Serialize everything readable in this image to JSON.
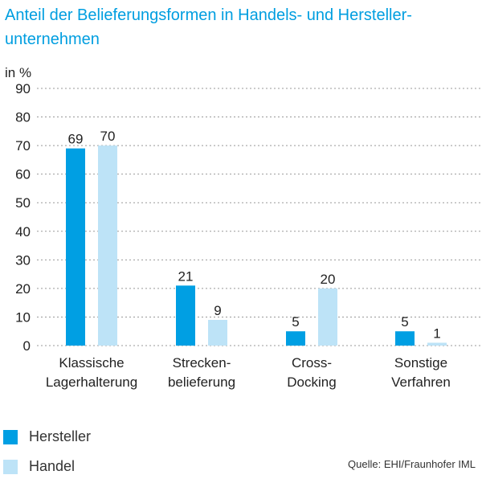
{
  "chart_data": {
    "type": "bar",
    "title": "Anteil der Belieferungsformen in Handels- und Hersteller-unternehmen",
    "title_lines": [
      "Anteil der Belieferungsformen in Handels- und Hersteller-",
      "unternehmen"
    ],
    "ylabel": "in %",
    "ylim": [
      0,
      90
    ],
    "yticks": [
      0,
      10,
      20,
      30,
      40,
      50,
      60,
      70,
      80,
      90
    ],
    "grid": true,
    "categories": [
      [
        "Klassische",
        "Lagerhalterung"
      ],
      [
        "Strecken-",
        "belieferung"
      ],
      [
        "Cross-",
        "Docking"
      ],
      [
        "Sonstige",
        "Verfahren"
      ]
    ],
    "series": [
      {
        "name": "Hersteller",
        "color": "#009fe3",
        "values": [
          69,
          21,
          5,
          5
        ]
      },
      {
        "name": "Handel",
        "color": "#bde3f7",
        "values": [
          70,
          9,
          20,
          1
        ]
      }
    ],
    "legend_position": "bottom-left",
    "source": "Quelle: EHI/Fraunhofer IML"
  }
}
